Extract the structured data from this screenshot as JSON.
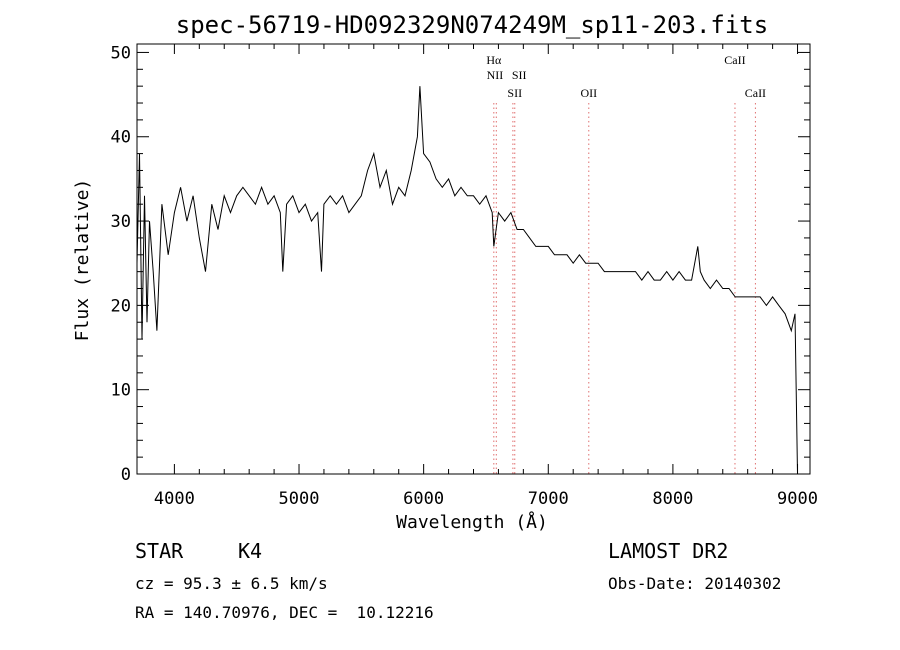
{
  "chart_data": {
    "type": "line",
    "title": "spec-56719-HD092329N074249M_sp11-203.fits",
    "xlabel": "Wavelength (Å)",
    "ylabel": "Flux (relative)",
    "xlim": [
      3700,
      9100
    ],
    "ylim": [
      0,
      51
    ],
    "xticks": [
      4000,
      5000,
      6000,
      7000,
      8000,
      9000
    ],
    "yticks": [
      0,
      10,
      20,
      30,
      40,
      50
    ],
    "line_color": "#000000",
    "marker_color": "#e07070",
    "series": [
      {
        "x": [
          3700,
          3720,
          3740,
          3760,
          3780,
          3800,
          3830,
          3860,
          3900,
          3950,
          4000,
          4050,
          4100,
          4150,
          4200,
          4250,
          4300,
          4350,
          4400,
          4450,
          4500,
          4550,
          4600,
          4650,
          4700,
          4750,
          4800,
          4850,
          4870,
          4900,
          4950,
          5000,
          5050,
          5100,
          5150,
          5180,
          5200,
          5250,
          5300,
          5350,
          5400,
          5450,
          5500,
          5550,
          5600,
          5650,
          5700,
          5750,
          5800,
          5850,
          5900,
          5950,
          5970,
          6000,
          6050,
          6100,
          6150,
          6200,
          6250,
          6300,
          6350,
          6400,
          6450,
          6500,
          6550,
          6563,
          6600,
          6650,
          6700,
          6750,
          6800,
          6850,
          6900,
          6950,
          7000,
          7050,
          7100,
          7150,
          7200,
          7250,
          7300,
          7350,
          7400,
          7450,
          7500,
          7550,
          7600,
          7650,
          7700,
          7750,
          7800,
          7850,
          7900,
          7950,
          8000,
          8050,
          8100,
          8150,
          8200,
          8220,
          8250,
          8300,
          8350,
          8400,
          8450,
          8500,
          8550,
          8600,
          8650,
          8700,
          8750,
          8800,
          8850,
          8900,
          8950,
          8980,
          9000
        ],
        "y": [
          25,
          38,
          16,
          33,
          18,
          30,
          24,
          17,
          32,
          26,
          31,
          34,
          30,
          33,
          28,
          24,
          32,
          29,
          33,
          31,
          33,
          34,
          33,
          32,
          34,
          32,
          33,
          31,
          24,
          32,
          33,
          31,
          32,
          30,
          31,
          24,
          32,
          33,
          32,
          33,
          31,
          32,
          33,
          36,
          38,
          34,
          36,
          32,
          34,
          33,
          36,
          40,
          46,
          38,
          37,
          35,
          34,
          35,
          33,
          34,
          33,
          33,
          32,
          33,
          31,
          27,
          31,
          30,
          31,
          29,
          29,
          28,
          27,
          27,
          27,
          26,
          26,
          26,
          25,
          26,
          25,
          25,
          25,
          24,
          24,
          24,
          24,
          24,
          24,
          23,
          24,
          23,
          23,
          24,
          23,
          24,
          23,
          23,
          27,
          24,
          23,
          22,
          23,
          22,
          22,
          21,
          21,
          21,
          21,
          21,
          20,
          21,
          20,
          19,
          17,
          19,
          0
        ]
      }
    ],
    "line_markers": [
      {
        "label": "Hα",
        "x": 6563,
        "row": 1
      },
      {
        "label": "NII",
        "x": 6583,
        "row": 2,
        "anchor": "end"
      },
      {
        "label": "SII",
        "x": 6716,
        "row": 2,
        "anchor": "start"
      },
      {
        "label": "SII",
        "x": 6731,
        "row": 3
      },
      {
        "label": "OII",
        "x": 7325,
        "row": 3
      },
      {
        "label": "CaII",
        "x": 8498,
        "row": 1
      },
      {
        "label": "CaII",
        "x": 8662,
        "row": 3
      }
    ]
  },
  "footer": {
    "class_label": "STAR",
    "subclass": "K4",
    "survey": "LAMOST DR2",
    "cz": "cz = 95.3 ± 6.5 km/s",
    "obs_date": "Obs-Date: 20140302",
    "coords": "RA = 140.70976, DEC =  10.12216"
  }
}
